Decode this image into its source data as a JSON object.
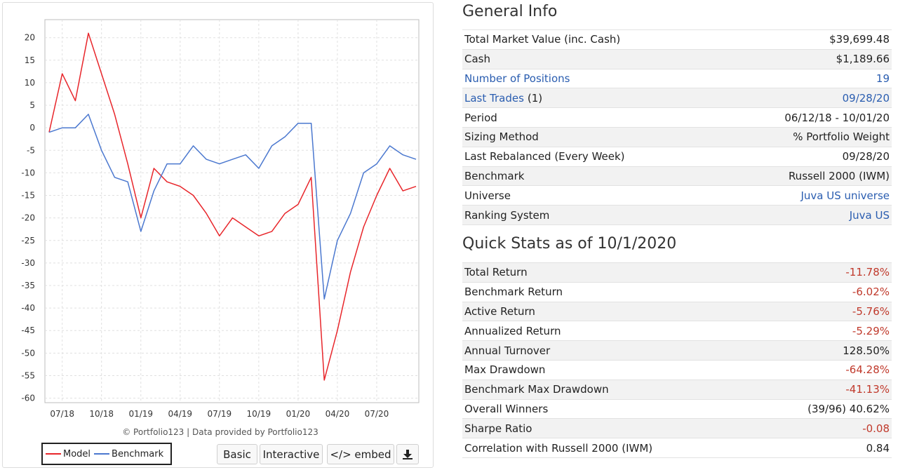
{
  "chart_data": {
    "type": "line",
    "ylim": [
      -61,
      24
    ],
    "yticks": [
      20,
      15,
      10,
      5,
      0,
      -5,
      -10,
      -15,
      -20,
      -25,
      -30,
      -35,
      -40,
      -45,
      -50,
      -55,
      -60
    ],
    "xticks": [
      "07/18",
      "10/18",
      "01/19",
      "04/19",
      "07/19",
      "10/19",
      "01/20",
      "04/20",
      "07/20"
    ],
    "x": [
      "06/18",
      "07/18",
      "08/18",
      "09/18",
      "10/18",
      "11/18",
      "12/18",
      "01/19",
      "02/19",
      "03/19",
      "04/19",
      "05/19",
      "06/19",
      "07/19",
      "08/19",
      "09/19",
      "10/19",
      "11/19",
      "12/19",
      "01/20",
      "02/20",
      "03/20",
      "04/20",
      "05/20",
      "06/20",
      "07/20",
      "08/20",
      "09/20",
      "10/20"
    ],
    "series": [
      {
        "name": "Model",
        "color": "#e8262b",
        "values": [
          -1,
          12,
          6,
          21,
          12,
          3,
          -8,
          -20,
          -9,
          -12,
          -13,
          -15,
          -19,
          -24,
          -20,
          -22,
          -24,
          -23,
          -19,
          -17,
          -11,
          -56,
          -45,
          -32,
          -22,
          -15,
          -9,
          -14,
          -13
        ]
      },
      {
        "name": "Benchmark",
        "color": "#4b78cf",
        "values": [
          -1,
          0,
          0,
          3,
          -5,
          -11,
          -12,
          -23,
          -14,
          -8,
          -8,
          -4,
          -7,
          -8,
          -7,
          -6,
          -9,
          -4,
          -2,
          1,
          1,
          -38,
          -25,
          -19,
          -10,
          -8,
          -4,
          -6,
          -7
        ]
      }
    ],
    "credit": "© Portfolio123 | Data provided by Portfolio123"
  },
  "legend": {
    "model": "Model",
    "benchmark": "Benchmark"
  },
  "buttons": {
    "basic": "Basic",
    "interactive": "Interactive",
    "embed": "</> embed",
    "download_icon": "download-icon"
  },
  "general_info": {
    "title": "General Info",
    "rows": [
      {
        "label": "Total Market Value (inc. Cash)",
        "value": "$39,699.48",
        "shade": false
      },
      {
        "label": "Cash",
        "value": "$1,189.66",
        "shade": true
      },
      {
        "label": "Number of Positions",
        "value": "19",
        "shade": false,
        "link": true
      },
      {
        "label": "Last Trades",
        "suffix": "(1)",
        "value": "09/28/20",
        "shade": true,
        "link": true
      },
      {
        "label": "Period",
        "value": "06/12/18 - 10/01/20",
        "shade": false
      },
      {
        "label": "Sizing Method",
        "value": "% Portfolio Weight",
        "shade": true
      },
      {
        "label": "Last Rebalanced (Every Week)",
        "value": "09/28/20",
        "shade": false
      },
      {
        "label": "Benchmark",
        "value": "Russell 2000 (IWM)",
        "shade": true
      },
      {
        "label": "Universe",
        "value": "Juva US universe",
        "shade": false,
        "value_link": true
      },
      {
        "label": "Ranking System",
        "value": "Juva US",
        "shade": true,
        "value_link": true
      }
    ]
  },
  "quick_stats": {
    "title": "Quick Stats as of 10/1/2020",
    "rows": [
      {
        "label": "Total Return",
        "value": "-11.78%",
        "neg": true,
        "shade": true
      },
      {
        "label": "Benchmark Return",
        "value": "-6.02%",
        "neg": true,
        "shade": false
      },
      {
        "label": "Active Return",
        "value": "-5.76%",
        "neg": true,
        "shade": true
      },
      {
        "label": "Annualized Return",
        "value": "-5.29%",
        "neg": true,
        "shade": false
      },
      {
        "label": "Annual Turnover",
        "value": "128.50%",
        "neg": false,
        "shade": true
      },
      {
        "label": "Max Drawdown",
        "value": "-64.28%",
        "neg": true,
        "shade": false
      },
      {
        "label": "Benchmark Max Drawdown",
        "value": "-41.13%",
        "neg": true,
        "shade": true
      },
      {
        "label": "Overall Winners",
        "value": "(39/96) 40.62%",
        "neg": false,
        "shade": false
      },
      {
        "label": "Sharpe Ratio",
        "value": "-0.08",
        "neg": true,
        "shade": true
      },
      {
        "label": "Correlation with Russell 2000 (IWM)",
        "value": "0.84",
        "neg": false,
        "shade": false
      }
    ]
  }
}
